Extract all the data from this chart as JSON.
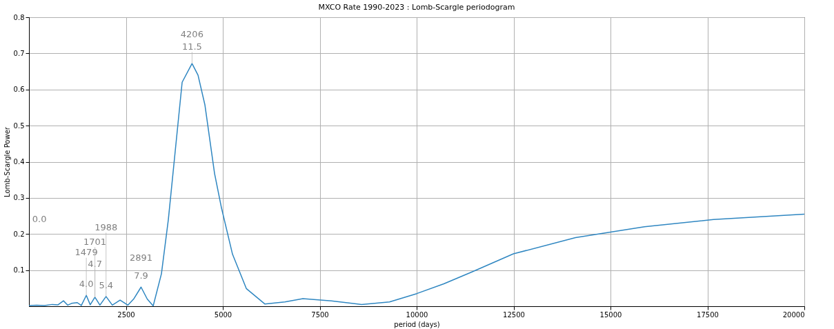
{
  "chart_data": {
    "type": "line",
    "title": "MXCO Rate 1990-2023 : Lomb-Scargle periodogram",
    "xlabel": "period (days)",
    "ylabel": "Lomb-Scargle Power",
    "x": [
      0,
      200,
      400,
      600,
      750,
      890,
      1000,
      1100,
      1246,
      1350,
      1479,
      1580,
      1701,
      1830,
      1988,
      2150,
      2350,
      2550,
      2700,
      2891,
      3050,
      3204,
      3417,
      3595,
      3773,
      3951,
      4206,
      4360,
      4539,
      4788,
      4966,
      5250,
      5606,
      6087,
      6600,
      7066,
      7800,
      8580,
      9300,
      10003,
      10700,
      11427,
      12495,
      14097,
      15877,
      17657,
      20000
    ],
    "series": [
      {
        "color": "#2e86c1",
        "values": [
          0.002,
          0.003,
          0.002,
          0.005,
          0.004,
          0.015,
          0.003,
          0.008,
          0.01,
          0.002,
          0.03,
          0.004,
          0.025,
          0.003,
          0.027,
          0.003,
          0.017,
          0.003,
          0.02,
          0.053,
          0.02,
          0.001,
          0.09,
          0.24,
          0.43,
          0.62,
          0.672,
          0.64,
          0.557,
          0.367,
          0.272,
          0.144,
          0.049,
          0.006,
          0.012,
          0.021,
          0.015,
          0.005,
          0.012,
          0.035,
          0.062,
          0.095,
          0.145,
          0.19,
          0.22,
          0.24,
          0.255
        ]
      }
    ],
    "xlim": [
      0,
      20000
    ],
    "ylim": [
      0,
      0.8
    ],
    "xticks": [
      2500,
      5000,
      7500,
      10000,
      12500,
      15000,
      17500,
      20000
    ],
    "yticks": [
      0.1,
      0.2,
      0.3,
      0.4,
      0.5,
      0.6,
      0.7,
      0.8
    ],
    "grid": true,
    "annotations": [
      {
        "text": "4206",
        "x": 4206,
        "y": 0.672
      },
      {
        "text": "11.5",
        "x": 4206,
        "y": 0.672
      },
      {
        "text": "2891",
        "x": 2891,
        "y": 0.053
      },
      {
        "text": "7.9",
        "x": 2891,
        "y": 0.053
      },
      {
        "text": "1479",
        "x": 1479,
        "y": 0.03
      },
      {
        "text": "4.0",
        "x": 1479,
        "y": 0.03
      },
      {
        "text": "1701",
        "x": 1701,
        "y": 0.025
      },
      {
        "text": "4.7",
        "x": 1701,
        "y": 0.025
      },
      {
        "text": "1988",
        "x": 1988,
        "y": 0.027
      },
      {
        "text": "5.4",
        "x": 1988,
        "y": 0.027
      },
      "0.0"
    ]
  }
}
